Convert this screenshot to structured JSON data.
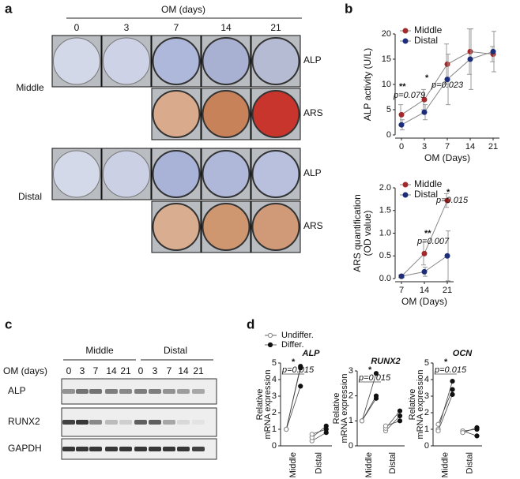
{
  "panel_labels": [
    "a",
    "b",
    "c",
    "d"
  ],
  "panel_a": {
    "axis_label": "OM (days)",
    "days": [
      "0",
      "3",
      "7",
      "14",
      "21"
    ],
    "rows": [
      "Middle",
      "Distal"
    ],
    "stains": [
      "ALP",
      "ARS"
    ]
  },
  "panel_c": {
    "groups": [
      "Middle",
      "Distal"
    ],
    "axis_label": "OM (days)",
    "lanes": [
      "0",
      "3",
      "7",
      "14",
      "21",
      "0",
      "3",
      "7",
      "14",
      "21"
    ],
    "proteins": [
      "ALP",
      "RUNX2",
      "GAPDH"
    ]
  },
  "chart_data": [
    {
      "type": "line",
      "categories": [
        "0",
        "3",
        "7",
        "14",
        "21"
      ],
      "xlabel": "OM (Days)",
      "ylabel": [
        "ALP activity (U/L)"
      ],
      "series": [
        {
          "name": "Middle",
          "color": "#a32a2a",
          "values": [
            4,
            7,
            14,
            16.5,
            16
          ],
          "errors": [
            2,
            2,
            4,
            4.5,
            1.5
          ]
        },
        {
          "name": "Distal",
          "color": "#1c2d7a",
          "values": [
            2,
            4.5,
            11,
            15,
            16.5
          ],
          "errors": [
            1,
            1.5,
            5,
            6,
            4
          ]
        }
      ],
      "ylim": [
        0,
        20
      ],
      "yticks": [
        0,
        5,
        10,
        15,
        20
      ],
      "legend": "upper left",
      "annotations": [
        "**",
        "p=0.079",
        "*",
        "p=0.023"
      ]
    },
    {
      "type": "line",
      "categories": [
        "7",
        "14",
        "21"
      ],
      "xlabel": "OM (Days)",
      "ylabel": [
        "ARS quantification",
        "(OD value)"
      ],
      "series": [
        {
          "name": "Middle",
          "color": "#a32a2a",
          "values": [
            0.05,
            0.55,
            1.72
          ],
          "errors": [
            0.03,
            0.25,
            0.15
          ]
        },
        {
          "name": "Distal",
          "color": "#1c2d7a",
          "values": [
            0.05,
            0.15,
            0.5
          ],
          "errors": [
            0.03,
            0.1,
            0.55
          ]
        }
      ],
      "ylim": [
        0,
        2
      ],
      "yticks": [
        {
          "value": 0,
          "label": "0.0"
        },
        {
          "value": 0.5,
          "label": "0.5"
        },
        {
          "value": 1,
          "label": "1.0"
        },
        {
          "value": 1.5,
          "label": "1.5"
        },
        {
          "value": 2,
          "label": "2.0"
        }
      ],
      "legend": "upper left",
      "annotations": [
        "**",
        "p=0.007",
        "*",
        "p=0.015"
      ]
    },
    {
      "type": "dot",
      "title": "ALP",
      "categories": [
        "Middle",
        "Distal"
      ],
      "ylabel": [
        "Relative",
        "mRNA expression"
      ],
      "series": [
        {
          "name": "Undiffer.",
          "color": "#888888",
          "filled": false,
          "values": [
            [
              1,
              1,
              1
            ],
            [
              0.3,
              0.5,
              0.7
            ]
          ]
        },
        {
          "name": "Differ.",
          "color": "#111111",
          "filled": true,
          "values": [
            [
              4.7,
              4.8,
              3.6
            ],
            [
              0.8,
              1.2,
              1.0
            ]
          ]
        }
      ],
      "ylim": [
        0,
        5
      ],
      "yticks": [
        0,
        1,
        2,
        3,
        4,
        5
      ],
      "legend": "upper left",
      "annotations": [
        "*",
        "p=0.015"
      ]
    },
    {
      "type": "dot",
      "title": "RUNX2",
      "categories": [
        "Middle",
        "Distal"
      ],
      "ylabel": [
        "Relative",
        "mRNA expression"
      ],
      "series": [
        {
          "color": "#888888",
          "filled": false,
          "values": [
            [
              1,
              1,
              1
            ],
            [
              0.6,
              0.7,
              0.8
            ]
          ]
        },
        {
          "color": "#111111",
          "filled": true,
          "values": [
            [
              2.9,
              2.0,
              1.9
            ],
            [
              1.2,
              1.4,
              1.0
            ]
          ]
        }
      ],
      "ylim": [
        0,
        3
      ],
      "yticks": [
        0,
        1,
        2,
        3
      ],
      "annotations": [
        "*",
        "p=0.015"
      ]
    },
    {
      "type": "dot",
      "title": "OCN",
      "categories": [
        "Middle",
        "Distal"
      ],
      "ylabel": [
        "Relative",
        "mRNA expression"
      ],
      "series": [
        {
          "color": "#888888",
          "filled": false,
          "values": [
            [
              1.0,
              1.3,
              0.9
            ],
            [
              0.9,
              0.9,
              0.8
            ]
          ]
        },
        {
          "color": "#111111",
          "filled": true,
          "values": [
            [
              3.9,
              3.4,
              3.1
            ],
            [
              1.0,
              0.6,
              1.1
            ]
          ]
        }
      ],
      "ylim": [
        0,
        5
      ],
      "yticks": [
        0,
        1,
        2,
        3,
        4,
        5
      ],
      "annotations": [
        "*",
        "p=0.015"
      ]
    }
  ]
}
